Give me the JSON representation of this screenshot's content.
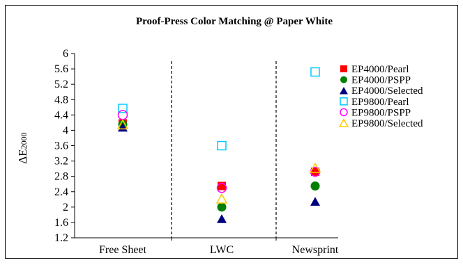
{
  "chart_data": {
    "type": "scatter",
    "title": "Proof-Press Color Matching @ Paper White",
    "ylabel_main": "ΔE",
    "ylabel_sub": "2000",
    "xlabel": "",
    "categories": [
      "Free Sheet",
      "LWC",
      "Newsprint"
    ],
    "ylim": [
      1.2,
      6
    ],
    "yticks": [
      "1.2",
      "1.6",
      "2",
      "2.4",
      "2.8",
      "3.2",
      "3.6",
      "4",
      "4.4",
      "4.8",
      "5.2",
      "5.6",
      "6"
    ],
    "grid": false,
    "category_separators": "dashed",
    "legend_position": "right",
    "series": [
      {
        "name": "EP4000/Pearl",
        "marker": "square-filled",
        "color": "#ff0000",
        "values": [
          4.18,
          2.55,
          2.92
        ]
      },
      {
        "name": "EP4000/PSPP",
        "marker": "circle-filled",
        "color": "#008000",
        "values": [
          4.15,
          2.0,
          2.55
        ]
      },
      {
        "name": "EP4000/Selected",
        "marker": "triangle-filled",
        "color": "#000080",
        "values": [
          4.08,
          1.7,
          2.15
        ]
      },
      {
        "name": "EP9800/Pearl",
        "marker": "square-open",
        "color": "#00ccff",
        "values": [
          4.57,
          3.6,
          5.52
        ]
      },
      {
        "name": "EP9800/PSPP",
        "marker": "circle-open",
        "color": "#ff00ff",
        "values": [
          4.4,
          2.5,
          2.92
        ]
      },
      {
        "name": "EP9800/Selected",
        "marker": "triangle-open",
        "color": "#ffcc00",
        "values": [
          4.15,
          2.22,
          3.02
        ]
      }
    ]
  }
}
